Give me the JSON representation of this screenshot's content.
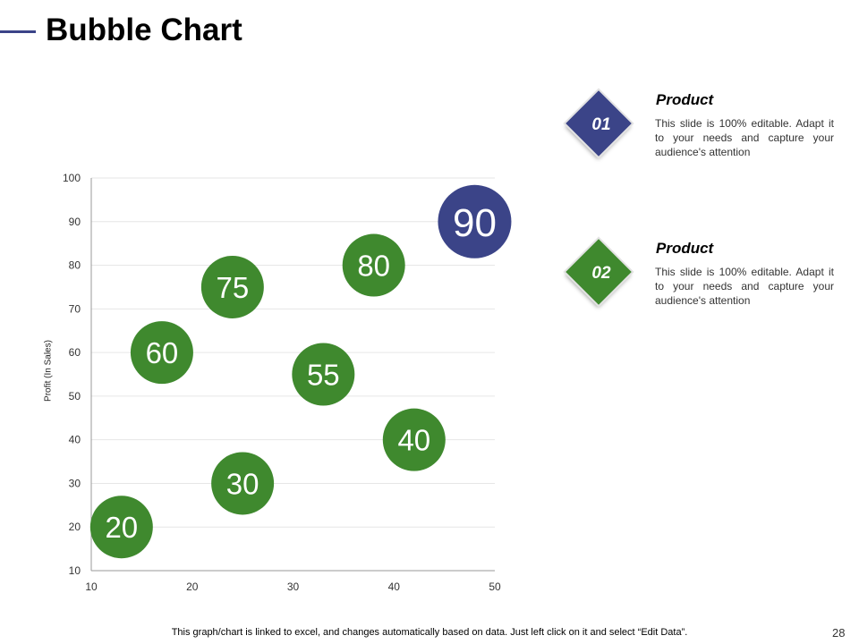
{
  "slide": {
    "title": "Bubble Chart",
    "footnote": "This graph/chart is linked to excel, and changes automatically based on data. Just left click on it and select “Edit Data”.",
    "page_number": "28"
  },
  "legend": [
    {
      "number": "01",
      "title": "Product",
      "description": "This slide is 100% editable. Adapt it to your needs and capture your audience's attention",
      "color": "#3b4488"
    },
    {
      "number": "02",
      "title": "Product",
      "description": "This slide is 100% editable. Adapt it to your needs and capture your audience's attention",
      "color": "#3f892e"
    }
  ],
  "chart_data": {
    "type": "scatter",
    "title": "Bubble Chart",
    "xlabel": "",
    "ylabel": "Profit  (In Sales)",
    "xlim": [
      10,
      50
    ],
    "ylim": [
      10,
      100
    ],
    "xticks": [
      10,
      20,
      30,
      40,
      50
    ],
    "yticks": [
      10,
      20,
      30,
      40,
      50,
      60,
      70,
      80,
      90,
      100
    ],
    "grid": true,
    "series": [
      {
        "name": "Product 01",
        "color": "#3b4488",
        "points": [
          {
            "x": 48,
            "y": 90,
            "label": "90"
          }
        ]
      },
      {
        "name": "Product 02",
        "color": "#3f892e",
        "points": [
          {
            "x": 13,
            "y": 20,
            "label": "20"
          },
          {
            "x": 25,
            "y": 30,
            "label": "30"
          },
          {
            "x": 42,
            "y": 40,
            "label": "40"
          },
          {
            "x": 33,
            "y": 55,
            "label": "55"
          },
          {
            "x": 17,
            "y": 60,
            "label": "60"
          },
          {
            "x": 24,
            "y": 75,
            "label": "75"
          },
          {
            "x": 38,
            "y": 80,
            "label": "80"
          }
        ]
      }
    ]
  }
}
